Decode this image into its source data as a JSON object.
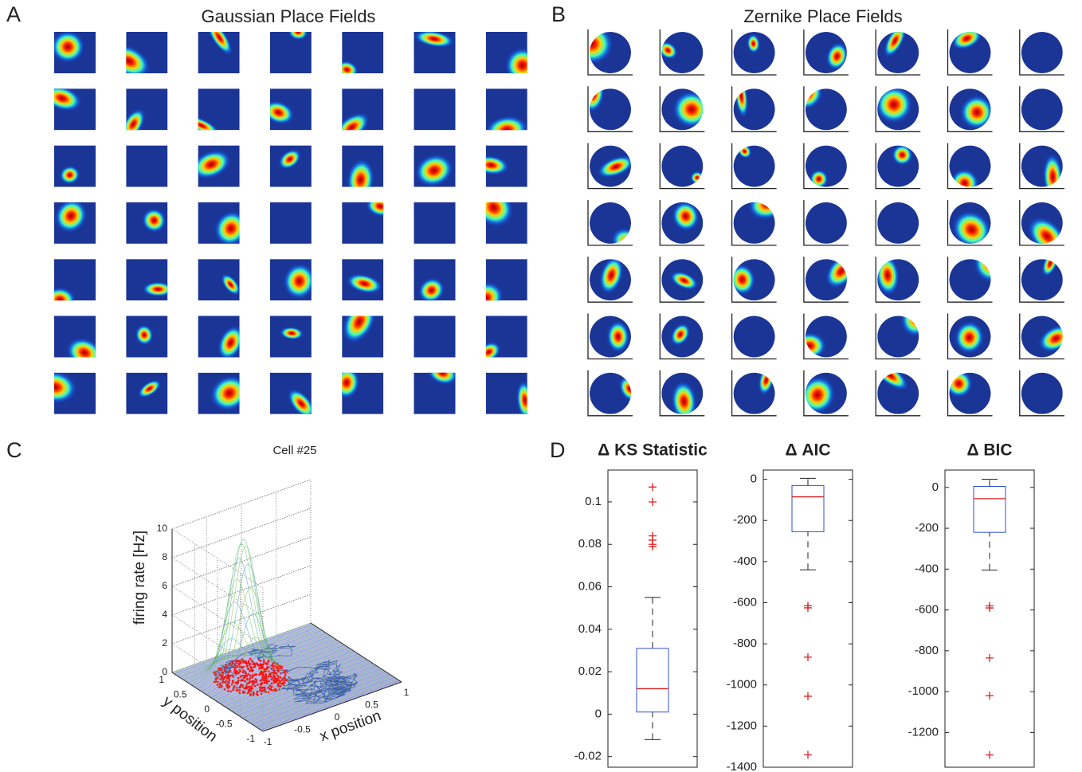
{
  "chart_data": [
    {
      "type": "image-grid",
      "panel": "A",
      "title": "Gaussian Place Fields",
      "shape": "square"
    },
    {
      "type": "image-grid",
      "panel": "B",
      "title": "Zernike Place Fields",
      "shape": "circle"
    },
    {
      "type": "surface3d",
      "panel": "C",
      "title": "Cell #25",
      "zlabel": "firing rate [Hz]",
      "xlabel": "x position",
      "ylabel": "y position",
      "xlim": [
        -1,
        1
      ],
      "xticks": [
        -1,
        -0.5,
        0,
        0.5,
        1
      ],
      "ylim": [
        -1,
        1
      ],
      "yticks": [
        -1,
        -0.5,
        0,
        0.5,
        1
      ],
      "zlim": [
        0,
        10
      ],
      "zticks": [
        0,
        2,
        4,
        6,
        8,
        10
      ]
    },
    {
      "type": "box",
      "panel": "D",
      "title": "Δ  KS Statistic",
      "ylim": [
        -0.025,
        0.115
      ],
      "yticks": [
        -0.02,
        0,
        0.02,
        0.04,
        0.06,
        0.08,
        0.1
      ],
      "whislo": -0.012,
      "q1": 0.001,
      "med": 0.012,
      "q3": 0.031,
      "whishi": 0.055,
      "outliers": [
        0.107,
        0.1,
        0.084,
        0.082,
        0.08,
        0.079
      ]
    },
    {
      "type": "box",
      "title": "Δ AIC",
      "ylim": [
        -1400,
        45
      ],
      "yticks": [
        -1400,
        -1200,
        -1000,
        -800,
        -600,
        -400,
        -200,
        0
      ],
      "whislo": -440,
      "q1": -255,
      "med": -85,
      "q3": -30,
      "whishi": 5,
      "outliers": [
        -615,
        -625,
        -865,
        -1055,
        -1340
      ]
    },
    {
      "type": "box",
      "title": "Δ BIC",
      "ylim": [
        -1370,
        85
      ],
      "yticks": [
        -1200,
        -1000,
        -800,
        -600,
        -400,
        -200,
        0
      ],
      "whislo": -405,
      "q1": -220,
      "med": -55,
      "q3": 5,
      "whishi": 40,
      "outliers": [
        -580,
        -590,
        -835,
        -1020,
        -1310
      ]
    }
  ]
}
